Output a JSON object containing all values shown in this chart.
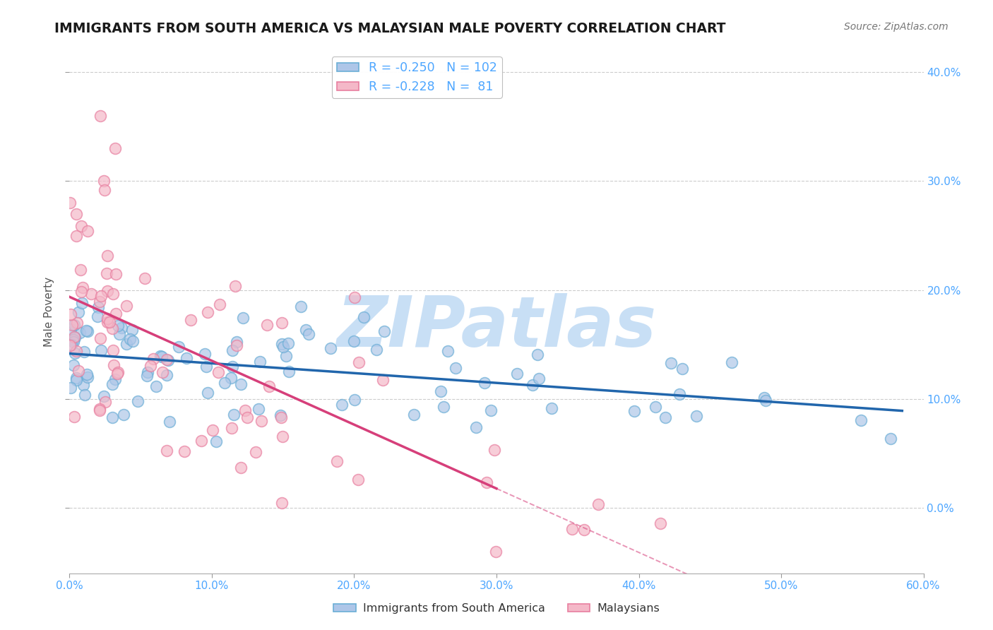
{
  "title": "IMMIGRANTS FROM SOUTH AMERICA VS MALAYSIAN MALE POVERTY CORRELATION CHART",
  "source": "Source: ZipAtlas.com",
  "ylabel": "Male Poverty",
  "legend_label1": "Immigrants from South America",
  "legend_label2": "Malaysians",
  "R1": -0.25,
  "N1": 102,
  "R2": -0.228,
  "N2": 81,
  "xlim": [
    0.0,
    0.6
  ],
  "ylim": [
    -0.06,
    0.42
  ],
  "color_blue_face": "#aec6e8",
  "color_blue_edge": "#6baed6",
  "color_pink_face": "#f4b8c8",
  "color_pink_edge": "#e87fa0",
  "color_line_blue": "#2166ac",
  "color_line_pink": "#d63f7a",
  "color_axis_ticks": "#4da6ff",
  "watermark": "ZIPatlas",
  "watermark_color": "#c8dff5",
  "xticks": [
    0.0,
    0.1,
    0.2,
    0.3,
    0.4,
    0.5,
    0.6
  ],
  "ytick_vals": [
    0.0,
    0.1,
    0.2,
    0.3,
    0.4
  ],
  "background_color": "#ffffff",
  "title_color": "#1a1a1a",
  "title_fontsize": 13.5,
  "source_fontsize": 10,
  "seed": 77
}
